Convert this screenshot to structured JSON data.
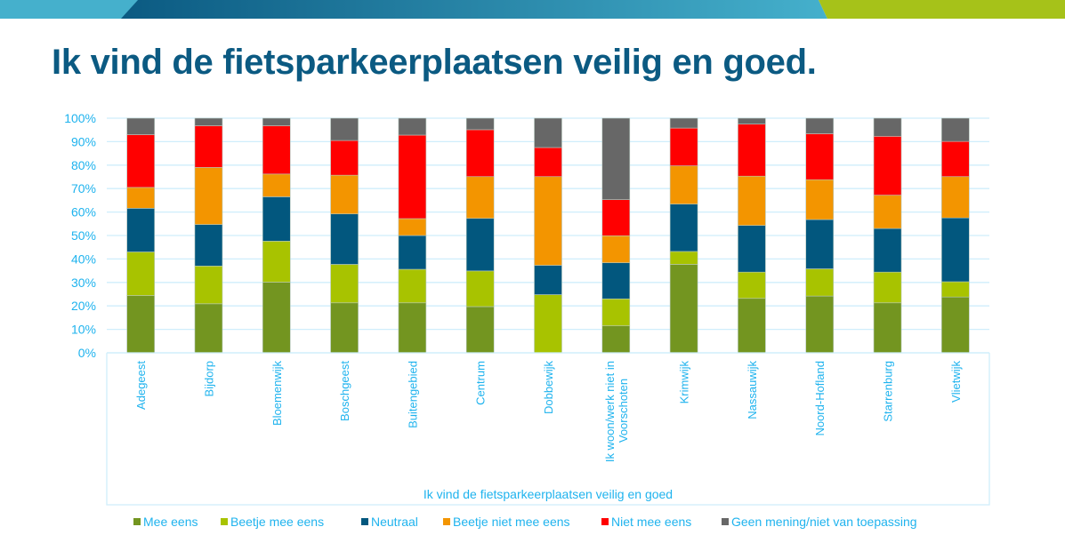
{
  "slide": {
    "title": "Ik vind de fietsparkeerplaatsen veilig en goed."
  },
  "theme": {
    "banner_dark": "#0b5a82",
    "banner_light": "#45b0cc",
    "banner_accent": "#a6c219",
    "title_color": "#0b5a82",
    "axis_text": "#1fb3ee",
    "gridline": "#cfeefb"
  },
  "chart_data": {
    "type": "bar",
    "stacked": true,
    "percent_stacked": true,
    "title": "",
    "xlabel": "Ik vind de fietsparkeerplaatsen veilig en goed",
    "ylabel": "",
    "ylim": [
      0,
      100
    ],
    "yticks": [
      "0%",
      "10%",
      "20%",
      "30%",
      "40%",
      "50%",
      "60%",
      "70%",
      "80%",
      "90%",
      "100%"
    ],
    "grid": true,
    "legend_position": "bottom",
    "categories": [
      [
        "Adegeest"
      ],
      [
        "Bijdorp"
      ],
      [
        "Bloemenwijk"
      ],
      [
        "Boschgeest"
      ],
      [
        "Buitengebied"
      ],
      [
        "Centrum"
      ],
      [
        "Dobbewijk"
      ],
      [
        "Ik woon/werk niet in",
        "Voorschoten"
      ],
      [
        "Krimwijk"
      ],
      [
        "Nassauwijk"
      ],
      [
        "Noord-Hofland"
      ],
      [
        "Starrenburg"
      ],
      [
        "Vlietwijk"
      ]
    ],
    "series": [
      {
        "name": "Mee eens",
        "color": "#739520",
        "values": [
          24.4,
          20.9,
          30.1,
          21.3,
          21.3,
          19.7,
          0.0,
          11.5,
          37.7,
          23.2,
          24.2,
          21.3,
          23.8
        ]
      },
      {
        "name": "Beetje mee eens",
        "color": "#a8c300",
        "values": [
          18.6,
          16.1,
          17.5,
          16.4,
          14.3,
          15.2,
          24.8,
          11.5,
          5.5,
          11.2,
          11.6,
          13.1,
          6.5
        ]
      },
      {
        "name": "Neutraal",
        "color": "#02577e",
        "values": [
          18.6,
          17.7,
          18.9,
          21.5,
          14.4,
          22.4,
          12.5,
          15.4,
          20.2,
          19.9,
          21.0,
          18.6,
          27.2
        ]
      },
      {
        "name": "Beetje niet mee eens",
        "color": "#f39500",
        "values": [
          8.9,
          24.3,
          9.7,
          16.5,
          7.2,
          17.8,
          37.8,
          11.5,
          16.3,
          21.0,
          17.0,
          14.2,
          17.6
        ]
      },
      {
        "name": "Niet mee eens",
        "color": "#ff0000",
        "values": [
          22.5,
          17.8,
          20.6,
          14.8,
          35.6,
          20.0,
          12.4,
          15.4,
          16.1,
          22.2,
          19.6,
          25.1,
          15.0
        ]
      },
      {
        "name": "Geen mening/niet van toepassing",
        "color": "#676767",
        "values": [
          7.0,
          3.2,
          3.2,
          9.5,
          7.2,
          4.9,
          12.5,
          34.7,
          4.2,
          2.5,
          6.6,
          7.7,
          9.9
        ]
      }
    ]
  }
}
